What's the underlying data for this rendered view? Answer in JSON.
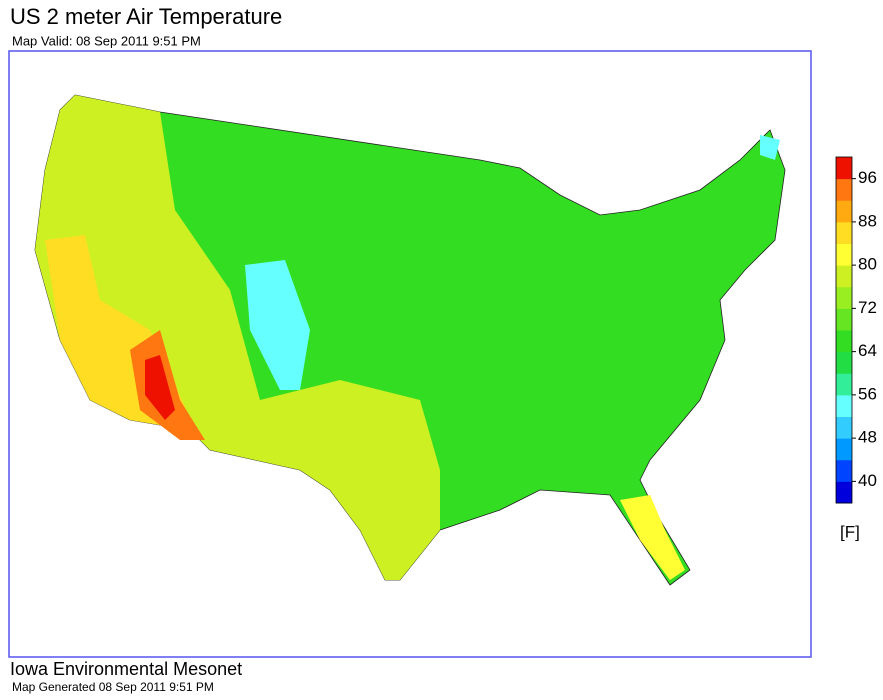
{
  "header": {
    "title": "US 2 meter Air Temperature",
    "subtitle": "Map Valid: 08 Sep 2011 9:51 PM"
  },
  "colorbar": {
    "lim": [
      36,
      100
    ],
    "ticks": [
      40,
      48,
      56,
      64,
      72,
      80,
      88,
      96
    ],
    "unit": "[F]",
    "colors": [
      "#0000dd",
      "#0044ff",
      "#0099ff",
      "#33ccff",
      "#66ffff",
      "#33ee99",
      "#22dd44",
      "#33dd22",
      "#66e622",
      "#99ee22",
      "#ccf022",
      "#ffff33",
      "#ffdd22",
      "#ffaa11",
      "#ff7711",
      "#ee1100"
    ]
  },
  "footer": {
    "org": "Iowa Environmental Mesonet",
    "generated": "Map Generated 08 Sep 2011 9:51 PM"
  }
}
